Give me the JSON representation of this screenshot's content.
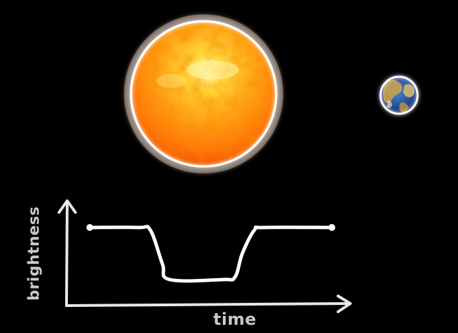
{
  "scene": {
    "star": {
      "name": "sun",
      "colors": [
        "#fff6a0",
        "#ffcc2a",
        "#ff9a10",
        "#ff6a00",
        "#e83a00"
      ]
    },
    "planet": {
      "name": "earth",
      "colors": [
        "#1f4fa0",
        "#3a78c8",
        "#d8a040",
        "#f0e0a0"
      ]
    }
  },
  "chart_data": {
    "type": "line",
    "xlabel": "time",
    "ylabel": "brightness",
    "series": [
      {
        "x": [
          0,
          0.2,
          0.25,
          0.3,
          0.33,
          0.55,
          0.6,
          0.63,
          0.68,
          0.72,
          1.0
        ],
        "y": [
          1.0,
          1.0,
          0.95,
          0.3,
          0.0,
          0.0,
          0.05,
          0.5,
          0.95,
          1.0,
          1.0
        ]
      }
    ],
    "grid": false,
    "colors": {
      "curve": "#ffffff",
      "axes": "#e8e8e8"
    }
  }
}
